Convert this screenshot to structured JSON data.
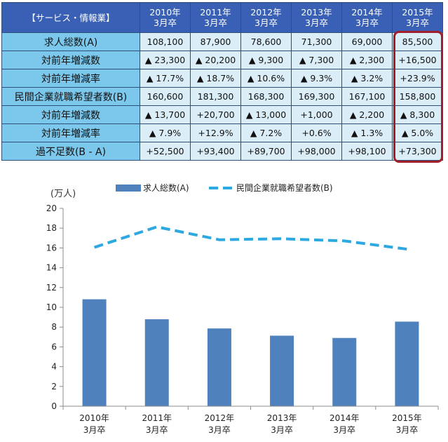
{
  "table": {
    "corner": "【サービス・情報業】",
    "columns": [
      {
        "l1": "2010年",
        "l2": "3月卒"
      },
      {
        "l1": "2011年",
        "l2": "3月卒"
      },
      {
        "l1": "2012年",
        "l2": "3月卒"
      },
      {
        "l1": "2013年",
        "l2": "3月卒"
      },
      {
        "l1": "2014年",
        "l2": "3月卒"
      },
      {
        "l1": "2015年",
        "l2": "3月卒"
      }
    ],
    "rows": [
      {
        "label": "求人総数(A)",
        "cells": [
          "108,100",
          "87,900",
          "78,600",
          "71,300",
          "69,000",
          "85,500"
        ]
      },
      {
        "label": "対前年増減数",
        "cells": [
          "▲ 23,300",
          "▲ 20,200",
          "▲ 9,300",
          "▲ 7,300",
          "▲ 2,300",
          "+16,500"
        ]
      },
      {
        "label": "対前年増減率",
        "cells": [
          "▲ 17.7%",
          "▲ 18.7%",
          "▲ 10.6%",
          "▲ 9.3%",
          "▲ 3.2%",
          "+23.9%"
        ]
      },
      {
        "label": "民間企業就職希望者数(B)",
        "cells": [
          "160,600",
          "181,300",
          "168,300",
          "169,300",
          "167,100",
          "158,800"
        ]
      },
      {
        "label": "対前年増減数",
        "cells": [
          "▲ 13,700",
          "+20,700",
          "▲ 13,000",
          "+1,000",
          "▲ 2,200",
          "▲ 8,300"
        ]
      },
      {
        "label": "対前年増減率",
        "cells": [
          "▲ 7.9%",
          "+12.9%",
          "▲ 7.2%",
          "+0.6%",
          "▲ 1.3%",
          "▲ 5.0%"
        ]
      },
      {
        "label": "過不足数(B - A)",
        "cells": [
          "+52,500",
          "+93,400",
          "+89,700",
          "+98,000",
          "+98,100",
          "+73,300"
        ]
      }
    ]
  },
  "colors": {
    "bar": "#4f81bd",
    "line": "#2ea8e0",
    "highlight": "#a01f2a"
  },
  "chart_data": {
    "type": "bar",
    "ylabel": "(万人)",
    "ylim": [
      0,
      20
    ],
    "yticks": [
      0,
      2,
      4,
      6,
      8,
      10,
      12,
      14,
      16,
      18,
      20
    ],
    "categories": [
      {
        "l1": "2010年",
        "l2": "3月卒"
      },
      {
        "l1": "2011年",
        "l2": "3月卒"
      },
      {
        "l1": "2012年",
        "l2": "3月卒"
      },
      {
        "l1": "2013年",
        "l2": "3月卒"
      },
      {
        "l1": "2014年",
        "l2": "3月卒"
      },
      {
        "l1": "2015年",
        "l2": "3月卒"
      }
    ],
    "series": [
      {
        "name": "求人総数(A)",
        "type": "bar",
        "values": [
          10.81,
          8.79,
          7.86,
          7.13,
          6.9,
          8.55
        ]
      },
      {
        "name": "民間企業就職希望者数(B)",
        "type": "line-dashed",
        "values": [
          16.06,
          18.13,
          16.83,
          16.93,
          16.71,
          15.88
        ]
      }
    ],
    "legend": "top",
    "grid": false
  }
}
